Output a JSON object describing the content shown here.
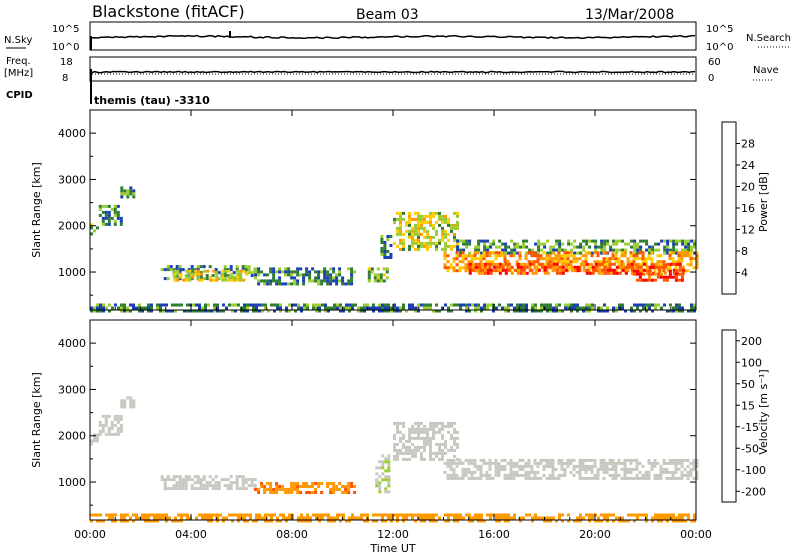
{
  "header": {
    "station": "Blackstone (fitACF)",
    "beam": "Beam 03",
    "date": "13/Mar/2008"
  },
  "panels": {
    "nsky_label": "N.Sky",
    "nsearch_label": "N.Search",
    "nsky_ticks": [
      "10^5",
      "10^0"
    ],
    "freq_label_1": "Freq.",
    "freq_label_2": "[MHz]",
    "freq_ticks": [
      "18",
      "8"
    ],
    "nave_label": "Nave",
    "nave_ticks": [
      "60",
      "0"
    ],
    "cpid_label": "CPID",
    "cpid_text": "themis (tau) -3310"
  },
  "chart_data": [
    {
      "type": "heatmap",
      "name": "power",
      "ylabel": "Slant Range [km]",
      "xlabel": "Time UT",
      "ylim": [
        180,
        4500
      ],
      "xlim": [
        0,
        24
      ],
      "y_ticks": [
        "4000",
        "3000",
        "2000",
        "1000"
      ],
      "y_tick_values": [
        4000,
        3000,
        2000,
        1000
      ],
      "x_ticks": [
        "00:00",
        "04:00",
        "08:00",
        "12:00",
        "16:00",
        "20:00",
        "00:00"
      ],
      "x_tick_values": [
        0,
        4,
        8,
        12,
        16,
        20,
        24
      ],
      "colorbar_label": "Power [dB]",
      "colorbar_ticks": [
        "28",
        "24",
        "20",
        "16",
        "12",
        "8",
        "4"
      ],
      "colorbar_colors": [
        "#0000ff",
        "#1a3fb5",
        "#2e7d32",
        "#9acd32",
        "#ffcc00",
        "#ff9900",
        "#ff5500",
        "#ff0000"
      ],
      "regions": [
        {
          "t": [
            0.0,
            0.35
          ],
          "r": [
            1800,
            2050
          ],
          "v": 12
        },
        {
          "t": [
            0.35,
            1.2
          ],
          "r": [
            2050,
            2450
          ],
          "v": 10
        },
        {
          "t": [
            1.2,
            1.7
          ],
          "r": [
            2650,
            2850
          ],
          "v": 9
        },
        {
          "t": [
            2.8,
            6.5
          ],
          "r": [
            850,
            1150
          ],
          "v": 10
        },
        {
          "t": [
            3.3,
            6.2
          ],
          "r": [
            800,
            1050
          ],
          "v": 17
        },
        {
          "t": [
            6.5,
            10.5
          ],
          "r": [
            750,
            1100
          ],
          "v": 9
        },
        {
          "t": [
            11.0,
            11.8
          ],
          "r": [
            800,
            1100
          ],
          "v": 13
        },
        {
          "t": [
            11.5,
            11.9
          ],
          "r": [
            1300,
            1800
          ],
          "v": 8
        },
        {
          "t": [
            12.0,
            14.5
          ],
          "r": [
            1500,
            2300
          ],
          "v": 16
        },
        {
          "t": [
            14.5,
            24.0
          ],
          "r": [
            1400,
            1700
          ],
          "v": 11
        },
        {
          "t": [
            14.0,
            24.0
          ],
          "r": [
            1050,
            1450
          ],
          "v": 22
        },
        {
          "t": [
            15.0,
            23.5
          ],
          "r": [
            950,
            1200
          ],
          "v": 26
        },
        {
          "t": [
            21.5,
            23.5
          ],
          "r": [
            850,
            1050
          ],
          "v": 28
        },
        {
          "t": [
            0.0,
            24.0
          ],
          "r": [
            180,
            320
          ],
          "v": 9
        }
      ]
    },
    {
      "type": "heatmap",
      "name": "velocity",
      "ylabel": "Slant Range [km]",
      "xlabel": "Time UT",
      "ylim": [
        180,
        4500
      ],
      "xlim": [
        0,
        24
      ],
      "y_ticks": [
        "4000",
        "3000",
        "2000",
        "1000"
      ],
      "y_tick_values": [
        4000,
        3000,
        2000,
        1000
      ],
      "x_ticks": [
        "00:00",
        "04:00",
        "08:00",
        "12:00",
        "16:00",
        "20:00",
        "00:00"
      ],
      "x_tick_values": [
        0,
        4,
        8,
        12,
        16,
        20,
        24
      ],
      "colorbar_label": "Velocity [m s⁻¹]",
      "colorbar_ticks": [
        "200",
        "100",
        "50",
        "15",
        "-15",
        "-50",
        "-100",
        "-200"
      ],
      "colorbar_colors": [
        "#ff0000",
        "#ff5500",
        "#ff9900",
        "#ffcc00",
        "#c8c8c0",
        "#9acd32",
        "#2e7d32",
        "#1a3fb5",
        "#0000ff"
      ],
      "regions": [
        {
          "t": [
            0.0,
            0.35
          ],
          "r": [
            1800,
            2050
          ],
          "v": 0
        },
        {
          "t": [
            0.35,
            1.2
          ],
          "r": [
            2050,
            2450
          ],
          "v": 0
        },
        {
          "t": [
            1.2,
            1.7
          ],
          "r": [
            2650,
            2850
          ],
          "v": 0
        },
        {
          "t": [
            2.8,
            6.5
          ],
          "r": [
            850,
            1150
          ],
          "v": 0
        },
        {
          "t": [
            6.5,
            10.5
          ],
          "r": [
            750,
            1000
          ],
          "v": -40
        },
        {
          "t": [
            11.3,
            11.8
          ],
          "r": [
            800,
            1600
          ],
          "v": 45
        },
        {
          "t": [
            12.0,
            14.5
          ],
          "r": [
            1500,
            2300
          ],
          "v": 0
        },
        {
          "t": [
            14.0,
            24.0
          ],
          "r": [
            1100,
            1500
          ],
          "v": 0
        },
        {
          "t": [
            0.0,
            24.0
          ],
          "r": [
            180,
            320
          ],
          "v": -30
        }
      ]
    }
  ]
}
